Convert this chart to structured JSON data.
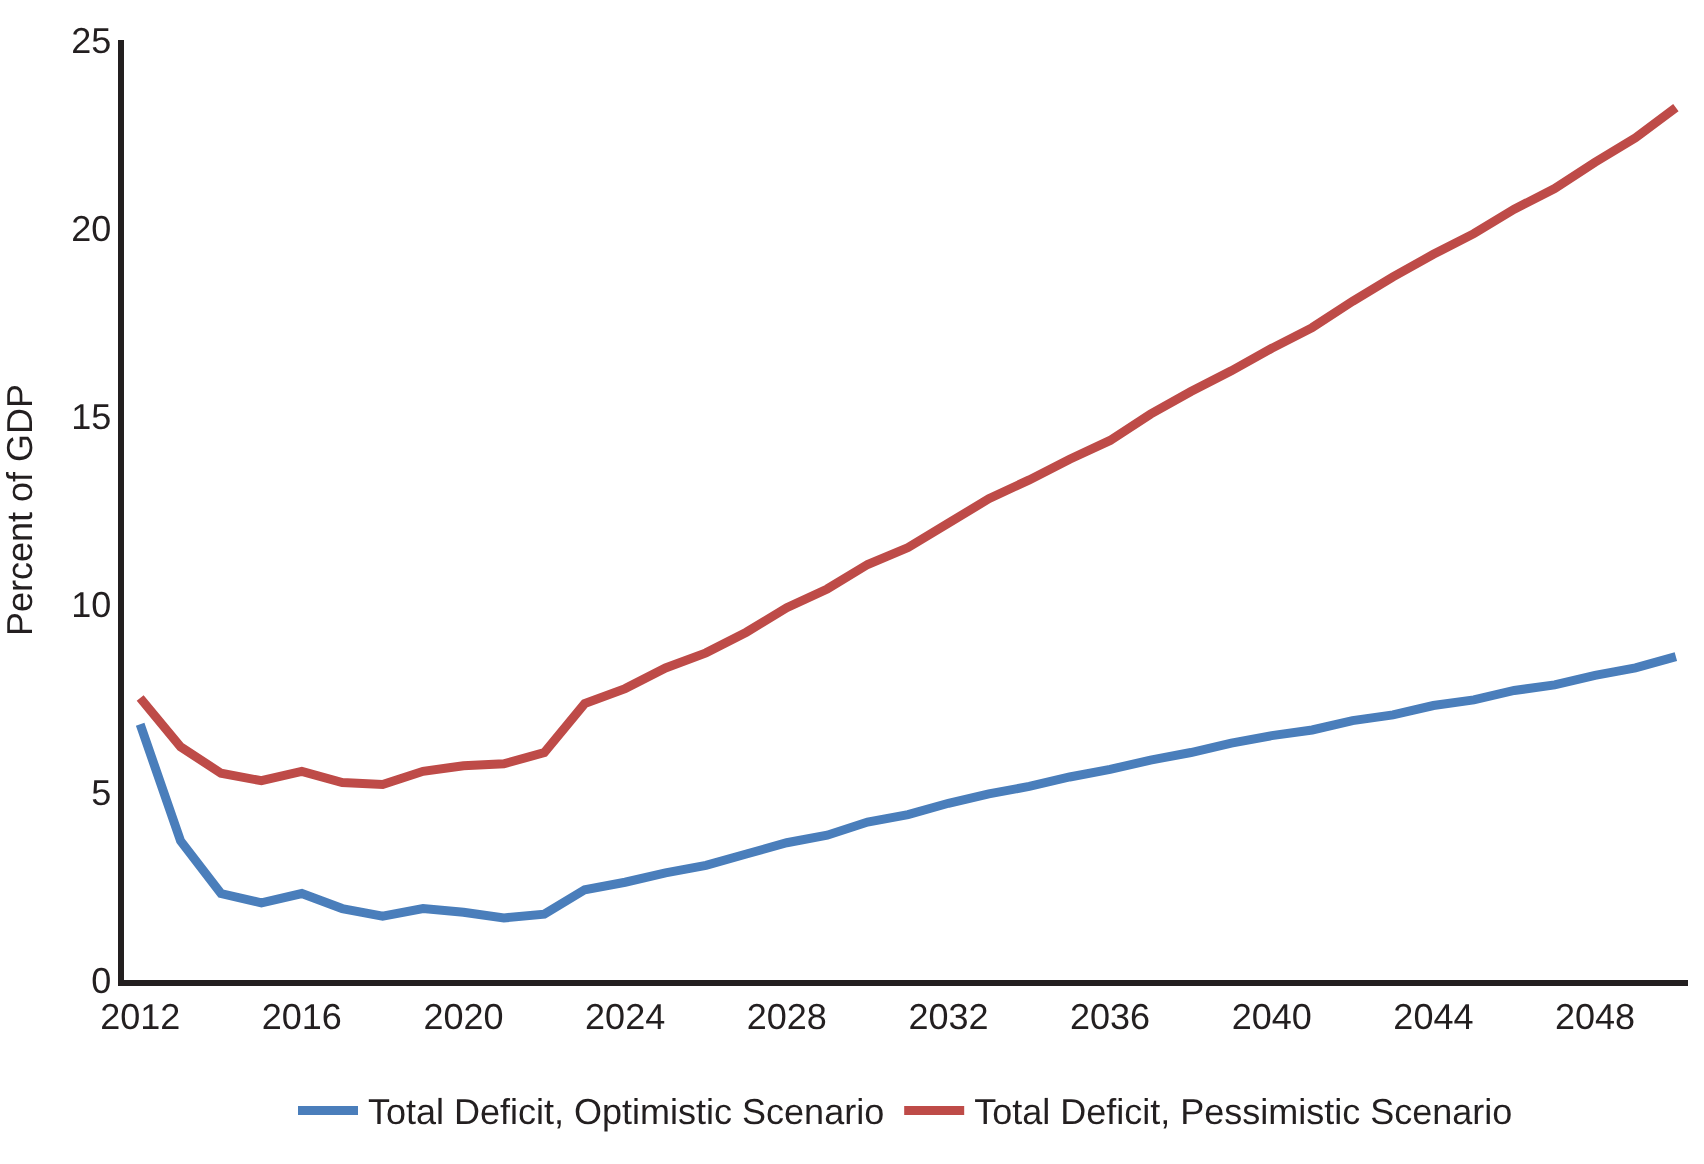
{
  "chart_data": {
    "type": "line",
    "ylabel": "Percent of GDP",
    "x": [
      2012,
      2013,
      2014,
      2015,
      2016,
      2017,
      2018,
      2019,
      2020,
      2021,
      2022,
      2023,
      2024,
      2025,
      2026,
      2027,
      2028,
      2029,
      2030,
      2031,
      2032,
      2033,
      2034,
      2035,
      2036,
      2037,
      2038,
      2039,
      2040,
      2041,
      2042,
      2043,
      2044,
      2045,
      2046,
      2047,
      2048,
      2049,
      2050
    ],
    "series": [
      {
        "name": "Total Deficit, Optimistic Scenario",
        "color": "#4a7ebb",
        "values": [
          6.8,
          3.7,
          2.3,
          2.05,
          2.3,
          1.9,
          1.7,
          1.9,
          1.8,
          1.65,
          1.75,
          2.4,
          2.6,
          2.85,
          3.05,
          3.35,
          3.65,
          3.85,
          4.2,
          4.4,
          4.7,
          4.95,
          5.15,
          5.4,
          5.6,
          5.85,
          6.05,
          6.3,
          6.5,
          6.65,
          6.9,
          7.05,
          7.3,
          7.45,
          7.7,
          7.85,
          8.1,
          8.3,
          8.6
        ]
      },
      {
        "name": "Total Deficit, Pessimistic Scenario",
        "color": "#be4b48",
        "values": [
          7.5,
          6.2,
          5.5,
          5.3,
          5.55,
          5.25,
          5.2,
          5.55,
          5.7,
          5.75,
          6.05,
          7.35,
          7.75,
          8.3,
          8.7,
          9.25,
          9.9,
          10.4,
          11.05,
          11.5,
          12.15,
          12.8,
          13.3,
          13.85,
          14.35,
          15.05,
          15.65,
          16.2,
          16.8,
          17.35,
          18.05,
          18.7,
          19.3,
          19.85,
          20.5,
          21.05,
          21.75,
          22.4,
          23.2
        ]
      }
    ],
    "xlim": [
      2011.6,
      2050.3
    ],
    "xticks": [
      2012,
      2016,
      2020,
      2024,
      2028,
      2032,
      2036,
      2040,
      2044,
      2048
    ],
    "ylim": [
      0,
      25
    ],
    "yticks": [
      0,
      5,
      10,
      15,
      20,
      25
    ],
    "legend": "bottom",
    "marker": "none",
    "line_style": "solid"
  }
}
